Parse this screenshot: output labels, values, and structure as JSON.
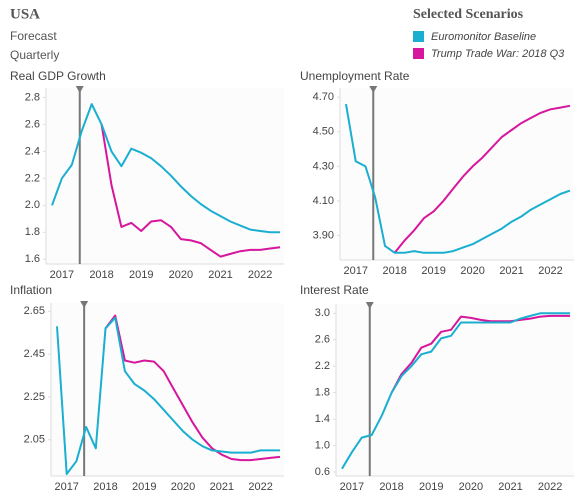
{
  "header": {
    "title": "USA",
    "lines": [
      "Forecast",
      "Quarterly"
    ],
    "legend_title": "Selected Scenarios"
  },
  "chart_data": [
    {
      "type": "line",
      "title": "Real GDP Growth",
      "categories": [
        null,
        "2017",
        null,
        null,
        null,
        "2018",
        null,
        null,
        null,
        "2019",
        null,
        null,
        null,
        "2020",
        null,
        null,
        null,
        "2021",
        null,
        null,
        null,
        "2022",
        null,
        null
      ],
      "ylim": [
        1.58,
        2.84
      ],
      "yticks": [
        1.6,
        1.8,
        {
          "value": 2.0,
          "label": "2.0"
        },
        2.2,
        2.4,
        2.6,
        2.8
      ],
      "series": [
        {
          "name": "Euromonitor Baseline",
          "color": "#1aafd0",
          "values": [
            2.0,
            2.2,
            2.3,
            2.55,
            2.75,
            2.6,
            2.4,
            2.29,
            2.42,
            2.39,
            2.35,
            2.29,
            2.22,
            2.14,
            2.07,
            2.01,
            1.96,
            1.92,
            1.88,
            1.85,
            1.82,
            1.81,
            1.8,
            1.8
          ]
        },
        {
          "name": "Trump Trade War: 2018 Q3",
          "color": "#d6169c",
          "values": [
            null,
            null,
            null,
            null,
            null,
            2.6,
            2.15,
            1.84,
            1.87,
            1.81,
            1.88,
            1.89,
            1.84,
            1.75,
            1.74,
            1.72,
            1.67,
            1.62,
            1.64,
            1.66,
            1.67,
            1.67,
            1.68,
            1.69
          ]
        }
      ]
    },
    {
      "type": "line",
      "title": "Unemployment Rate",
      "categories": [
        null,
        "2017",
        null,
        null,
        null,
        "2018",
        null,
        null,
        null,
        "2019",
        null,
        null,
        null,
        "2020",
        null,
        null,
        null,
        "2021",
        null,
        null,
        null,
        "2022",
        null,
        null
      ],
      "ylim": [
        3.77,
        4.73
      ],
      "yticks": [
        {
          "value": 3.9,
          "label": "3.90"
        },
        {
          "value": 4.1,
          "label": "4.10"
        },
        {
          "value": 4.3,
          "label": "4.30"
        },
        {
          "value": 4.5,
          "label": "4.50"
        },
        {
          "value": 4.7,
          "label": "4.70"
        }
      ],
      "series": [
        {
          "name": "Euromonitor Baseline",
          "color": "#1aafd0",
          "values": [
            4.66,
            4.33,
            4.3,
            4.12,
            3.84,
            3.8,
            3.8,
            3.81,
            3.8,
            3.8,
            3.8,
            3.81,
            3.83,
            3.85,
            3.88,
            3.91,
            3.94,
            3.98,
            4.01,
            4.05,
            4.08,
            4.11,
            4.14,
            4.16
          ]
        },
        {
          "name": "Trump Trade War: 2018 Q3",
          "color": "#d6169c",
          "values": [
            null,
            null,
            null,
            null,
            null,
            3.8,
            3.87,
            3.93,
            4.0,
            4.04,
            4.1,
            4.17,
            4.24,
            4.3,
            4.35,
            4.41,
            4.47,
            4.51,
            4.55,
            4.58,
            4.61,
            4.63,
            4.64,
            4.65
          ]
        }
      ]
    },
    {
      "type": "line",
      "title": "Inflation",
      "categories": [
        null,
        "2017",
        null,
        null,
        null,
        "2018",
        null,
        null,
        null,
        "2019",
        null,
        null,
        null,
        "2020",
        null,
        null,
        null,
        "2021",
        null,
        null,
        null,
        "2022",
        null,
        null
      ],
      "ylim": [
        1.89,
        2.67
      ],
      "yticks": [
        2.05,
        2.25,
        2.45,
        2.65
      ],
      "series": [
        {
          "name": "Euromonitor Baseline",
          "color": "#1aafd0",
          "values": [
            2.58,
            1.89,
            1.95,
            2.11,
            2.01,
            2.57,
            2.62,
            2.37,
            2.31,
            2.28,
            2.24,
            2.19,
            2.14,
            2.09,
            2.05,
            2.02,
            2.0,
            1.995,
            1.99,
            1.99,
            1.99,
            2.0,
            2.0,
            2.0
          ]
        },
        {
          "name": "Trump Trade War: 2018 Q3",
          "color": "#d6169c",
          "values": [
            null,
            null,
            null,
            null,
            null,
            2.57,
            2.63,
            2.42,
            2.41,
            2.42,
            2.415,
            2.37,
            2.29,
            2.21,
            2.13,
            2.06,
            2.01,
            1.98,
            1.96,
            1.955,
            1.955,
            1.96,
            1.965,
            1.97
          ]
        }
      ]
    },
    {
      "type": "line",
      "title": "Interest Rate",
      "categories": [
        null,
        "2017",
        null,
        null,
        null,
        "2018",
        null,
        null,
        null,
        "2019",
        null,
        null,
        null,
        "2020",
        null,
        null,
        null,
        "2021",
        null,
        null,
        null,
        "2022",
        null,
        null
      ],
      "ylim": [
        0.57,
        3.08
      ],
      "yticks": [
        0.6,
        {
          "value": 1.0,
          "label": "1.0"
        },
        1.4,
        1.8,
        2.2,
        2.6,
        {
          "value": 3.0,
          "label": "3.0"
        }
      ],
      "series": [
        {
          "name": "Euromonitor Baseline",
          "color": "#1aafd0",
          "values": [
            0.65,
            0.9,
            1.12,
            1.16,
            1.45,
            1.8,
            2.05,
            2.2,
            2.38,
            2.42,
            2.62,
            2.66,
            2.86,
            2.86,
            2.86,
            2.86,
            2.86,
            2.86,
            2.92,
            2.96,
            3.0,
            3.0,
            3.0,
            3.0
          ]
        },
        {
          "name": "Trump Trade War: 2018 Q3",
          "color": "#d6169c",
          "values": [
            null,
            null,
            null,
            null,
            null,
            1.8,
            2.08,
            2.25,
            2.48,
            2.54,
            2.72,
            2.75,
            2.95,
            2.93,
            2.9,
            2.88,
            2.88,
            2.88,
            2.9,
            2.92,
            2.95,
            2.96,
            2.96,
            2.96
          ]
        }
      ]
    }
  ]
}
